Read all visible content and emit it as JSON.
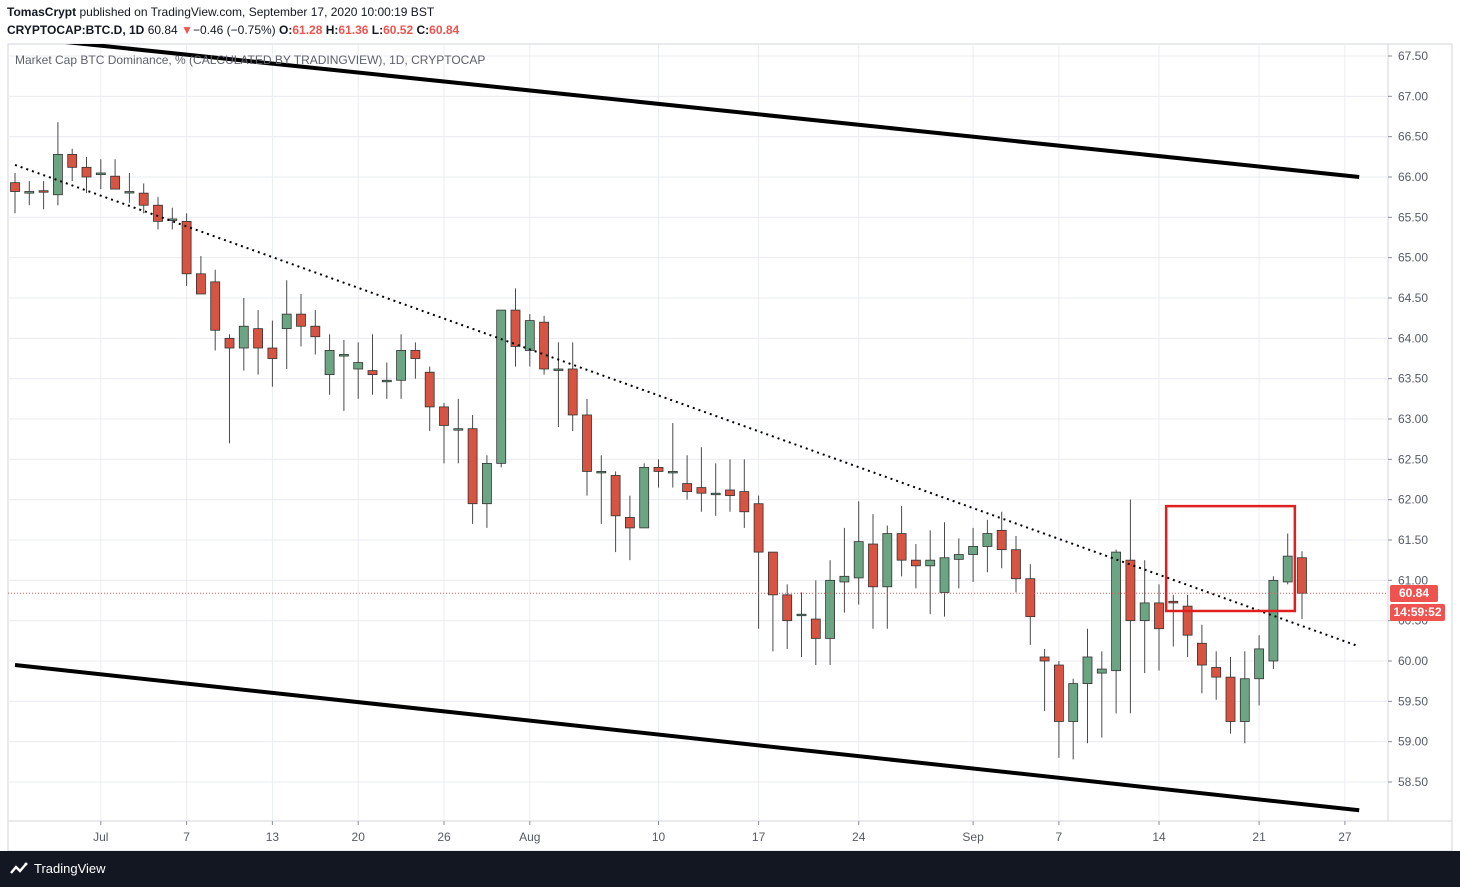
{
  "header": {
    "author": "TomasCrypt",
    "published_text": "published on TradingView.com, September 17, 2020 10:00:19 BST",
    "symbol": "CRYPTOCAP:BTC.D, 1D",
    "last": "60.84",
    "change_arrow": "▼",
    "change": "−0.46 (−0.75%)",
    "o_label": "O:",
    "o_value": "61.28",
    "h_label": "H:",
    "h_value": "61.36",
    "l_label": "L:",
    "l_value": "60.52",
    "c_label": "C:",
    "c_value": "60.84"
  },
  "subtitle": "Market Cap BTC Dominance, % (CALCULATED BY TRADINGVIEW), 1D, CRYPTOCAP",
  "badges": {
    "price": "60.84",
    "countdown": "14:59:52"
  },
  "footer": {
    "brand": "TradingView",
    "logo_icon": "tradingview-logo-icon"
  },
  "colors": {
    "up": "#6ba583",
    "down": "#d75442",
    "wick": "#4a4a4a",
    "grid": "#e9ecf2",
    "accent_red": "#ef5350",
    "box": "#e01f1f",
    "trendline": "#000000"
  },
  "chart_data": {
    "type": "candlestick",
    "y_ticks": [
      "58.50",
      "59.00",
      "59.50",
      "60.00",
      "60.50",
      "61.00",
      "61.50",
      "62.00",
      "62.50",
      "63.00",
      "63.50",
      "64.00",
      "64.50",
      "65.00",
      "65.50",
      "66.00",
      "66.50",
      "67.00",
      "67.50"
    ],
    "ylim": [
      58.1,
      67.7
    ],
    "x_ticks": [
      {
        "i": 6,
        "label": "Jul"
      },
      {
        "i": 12,
        "label": "7"
      },
      {
        "i": 18,
        "label": "13"
      },
      {
        "i": 24,
        "label": "20"
      },
      {
        "i": 30,
        "label": "26"
      },
      {
        "i": 36,
        "label": "Aug"
      },
      {
        "i": 45,
        "label": "10"
      },
      {
        "i": 52,
        "label": "17"
      },
      {
        "i": 59,
        "label": "24"
      },
      {
        "i": 67,
        "label": "Sep"
      },
      {
        "i": 73,
        "label": "7"
      },
      {
        "i": 80,
        "label": "14"
      },
      {
        "i": 87,
        "label": "21"
      },
      {
        "i": 93,
        "label": "27"
      }
    ],
    "candles": [
      {
        "o": 65.93,
        "h": 66.05,
        "l": 65.55,
        "c": 65.82
      },
      {
        "o": 65.8,
        "h": 65.95,
        "l": 65.65,
        "c": 65.82
      },
      {
        "o": 65.83,
        "h": 65.95,
        "l": 65.6,
        "c": 65.82
      },
      {
        "o": 65.78,
        "h": 66.68,
        "l": 65.65,
        "c": 66.28
      },
      {
        "o": 66.28,
        "h": 66.35,
        "l": 65.95,
        "c": 66.12
      },
      {
        "o": 66.12,
        "h": 66.25,
        "l": 65.8,
        "c": 66.0
      },
      {
        "o": 66.03,
        "h": 66.22,
        "l": 65.85,
        "c": 66.05
      },
      {
        "o": 66.01,
        "h": 66.22,
        "l": 65.85,
        "c": 65.85
      },
      {
        "o": 65.82,
        "h": 66.05,
        "l": 65.68,
        "c": 65.82
      },
      {
        "o": 65.8,
        "h": 65.92,
        "l": 65.55,
        "c": 65.65
      },
      {
        "o": 65.65,
        "h": 65.75,
        "l": 65.35,
        "c": 65.45
      },
      {
        "o": 65.48,
        "h": 65.62,
        "l": 65.35,
        "c": 65.48
      },
      {
        "o": 65.45,
        "h": 65.55,
        "l": 64.65,
        "c": 64.8
      },
      {
        "o": 64.8,
        "h": 65.02,
        "l": 64.55,
        "c": 64.55
      },
      {
        "o": 64.7,
        "h": 64.85,
        "l": 63.85,
        "c": 64.1
      },
      {
        "o": 64.0,
        "h": 64.05,
        "l": 62.7,
        "c": 63.88
      },
      {
        "o": 63.88,
        "h": 64.5,
        "l": 63.6,
        "c": 64.15
      },
      {
        "o": 64.12,
        "h": 64.35,
        "l": 63.55,
        "c": 63.88
      },
      {
        "o": 63.88,
        "h": 64.22,
        "l": 63.4,
        "c": 63.75
      },
      {
        "o": 64.12,
        "h": 64.72,
        "l": 63.62,
        "c": 64.3
      },
      {
        "o": 64.3,
        "h": 64.55,
        "l": 63.9,
        "c": 64.15
      },
      {
        "o": 64.15,
        "h": 64.35,
        "l": 63.8,
        "c": 64.02
      },
      {
        "o": 63.55,
        "h": 64.05,
        "l": 63.3,
        "c": 63.85
      },
      {
        "o": 63.78,
        "h": 63.98,
        "l": 63.1,
        "c": 63.8
      },
      {
        "o": 63.62,
        "h": 63.95,
        "l": 63.25,
        "c": 63.7
      },
      {
        "o": 63.6,
        "h": 64.05,
        "l": 63.3,
        "c": 63.55
      },
      {
        "o": 63.48,
        "h": 63.7,
        "l": 63.25,
        "c": 63.48
      },
      {
        "o": 63.48,
        "h": 64.05,
        "l": 63.25,
        "c": 63.85
      },
      {
        "o": 63.85,
        "h": 63.95,
        "l": 63.5,
        "c": 63.75
      },
      {
        "o": 63.58,
        "h": 63.65,
        "l": 62.85,
        "c": 63.15
      },
      {
        "o": 63.15,
        "h": 63.2,
        "l": 62.45,
        "c": 62.92
      },
      {
        "o": 62.88,
        "h": 63.25,
        "l": 62.45,
        "c": 62.88
      },
      {
        "o": 62.88,
        "h": 63.05,
        "l": 61.7,
        "c": 61.95
      },
      {
        "o": 61.95,
        "h": 62.55,
        "l": 61.65,
        "c": 62.45
      },
      {
        "o": 62.45,
        "h": 64.35,
        "l": 62.4,
        "c": 64.35
      },
      {
        "o": 64.35,
        "h": 64.62,
        "l": 63.65,
        "c": 63.9
      },
      {
        "o": 63.85,
        "h": 64.3,
        "l": 63.65,
        "c": 64.22
      },
      {
        "o": 64.2,
        "h": 64.28,
        "l": 63.55,
        "c": 63.62
      },
      {
        "o": 63.62,
        "h": 63.95,
        "l": 62.9,
        "c": 63.62
      },
      {
        "o": 63.62,
        "h": 63.95,
        "l": 62.85,
        "c": 63.05
      },
      {
        "o": 63.05,
        "h": 63.25,
        "l": 62.05,
        "c": 62.35
      },
      {
        "o": 62.35,
        "h": 62.55,
        "l": 61.7,
        "c": 62.35
      },
      {
        "o": 62.3,
        "h": 62.35,
        "l": 61.35,
        "c": 61.8
      },
      {
        "o": 61.78,
        "h": 62.05,
        "l": 61.25,
        "c": 61.65
      },
      {
        "o": 61.65,
        "h": 62.45,
        "l": 61.65,
        "c": 62.4
      },
      {
        "o": 62.4,
        "h": 62.5,
        "l": 62.15,
        "c": 62.35
      },
      {
        "o": 62.35,
        "h": 62.95,
        "l": 62.15,
        "c": 62.35
      },
      {
        "o": 62.2,
        "h": 62.55,
        "l": 62.0,
        "c": 62.1
      },
      {
        "o": 62.15,
        "h": 62.65,
        "l": 61.85,
        "c": 62.08
      },
      {
        "o": 62.08,
        "h": 62.45,
        "l": 61.8,
        "c": 62.08
      },
      {
        "o": 62.12,
        "h": 62.5,
        "l": 61.85,
        "c": 62.05
      },
      {
        "o": 62.1,
        "h": 62.5,
        "l": 61.65,
        "c": 61.85
      },
      {
        "o": 61.95,
        "h": 62.05,
        "l": 60.4,
        "c": 61.35
      },
      {
        "o": 61.35,
        "h": 61.35,
        "l": 60.12,
        "c": 60.82
      },
      {
        "o": 60.82,
        "h": 60.95,
        "l": 60.15,
        "c": 60.5
      },
      {
        "o": 60.58,
        "h": 60.85,
        "l": 60.05,
        "c": 60.58
      },
      {
        "o": 60.52,
        "h": 61.0,
        "l": 59.95,
        "c": 60.28
      },
      {
        "o": 60.28,
        "h": 61.25,
        "l": 59.95,
        "c": 61.0
      },
      {
        "o": 60.98,
        "h": 61.65,
        "l": 60.6,
        "c": 61.05
      },
      {
        "o": 61.03,
        "h": 61.98,
        "l": 60.7,
        "c": 61.48
      },
      {
        "o": 61.45,
        "h": 61.82,
        "l": 60.4,
        "c": 60.92
      },
      {
        "o": 60.92,
        "h": 61.68,
        "l": 60.4,
        "c": 61.58
      },
      {
        "o": 61.58,
        "h": 61.92,
        "l": 61.05,
        "c": 61.25
      },
      {
        "o": 61.25,
        "h": 61.45,
        "l": 60.9,
        "c": 61.18
      },
      {
        "o": 61.18,
        "h": 61.62,
        "l": 60.58,
        "c": 61.25
      },
      {
        "o": 60.85,
        "h": 61.72,
        "l": 60.55,
        "c": 61.28
      },
      {
        "o": 61.26,
        "h": 61.52,
        "l": 60.9,
        "c": 61.32
      },
      {
        "o": 61.32,
        "h": 61.65,
        "l": 60.98,
        "c": 61.42
      },
      {
        "o": 61.42,
        "h": 61.75,
        "l": 61.1,
        "c": 61.58
      },
      {
        "o": 61.62,
        "h": 61.85,
        "l": 61.15,
        "c": 61.38
      },
      {
        "o": 61.38,
        "h": 61.55,
        "l": 60.85,
        "c": 61.02
      },
      {
        "o": 61.02,
        "h": 61.2,
        "l": 60.2,
        "c": 60.55
      },
      {
        "o": 60.05,
        "h": 60.15,
        "l": 59.38,
        "c": 60.0
      },
      {
        "o": 59.95,
        "h": 60.0,
        "l": 58.8,
        "c": 59.25
      },
      {
        "o": 59.25,
        "h": 59.78,
        "l": 58.78,
        "c": 59.72
      },
      {
        "o": 59.72,
        "h": 60.4,
        "l": 58.98,
        "c": 60.05
      },
      {
        "o": 59.85,
        "h": 60.12,
        "l": 59.05,
        "c": 59.9
      },
      {
        "o": 59.88,
        "h": 61.38,
        "l": 59.35,
        "c": 61.35
      },
      {
        "o": 61.25,
        "h": 62.0,
        "l": 59.35,
        "c": 60.5
      },
      {
        "o": 60.5,
        "h": 61.25,
        "l": 59.85,
        "c": 60.72
      },
      {
        "o": 60.72,
        "h": 60.95,
        "l": 59.88,
        "c": 60.4
      },
      {
        "o": 60.74,
        "h": 60.82,
        "l": 60.18,
        "c": 60.72
      },
      {
        "o": 60.68,
        "h": 60.82,
        "l": 60.05,
        "c": 60.32
      },
      {
        "o": 60.22,
        "h": 60.45,
        "l": 59.6,
        "c": 59.95
      },
      {
        "o": 59.92,
        "h": 60.12,
        "l": 59.52,
        "c": 59.8
      },
      {
        "o": 59.8,
        "h": 60.05,
        "l": 59.1,
        "c": 59.25
      },
      {
        "o": 59.25,
        "h": 60.12,
        "l": 58.98,
        "c": 59.78
      },
      {
        "o": 59.78,
        "h": 60.32,
        "l": 59.45,
        "c": 60.15
      },
      {
        "o": 60.0,
        "h": 61.05,
        "l": 59.9,
        "c": 61.0
      },
      {
        "o": 60.98,
        "h": 61.58,
        "l": 60.95,
        "c": 61.3
      },
      {
        "o": 61.28,
        "h": 61.36,
        "l": 60.52,
        "c": 60.84
      }
    ],
    "trendlines": [
      {
        "style": "solid",
        "from": {
          "i": 1,
          "y": 67.72
        },
        "to": {
          "i": 94,
          "y": 66.0
        }
      },
      {
        "style": "solid",
        "from": {
          "i": 0,
          "y": 59.95
        },
        "to": {
          "i": 94,
          "y": 58.15
        }
      },
      {
        "style": "dotted",
        "from": {
          "i": 0,
          "y": 66.15
        },
        "to": {
          "i": 94,
          "y": 60.18
        }
      }
    ],
    "last_price_line": 60.84,
    "highlight_box": {
      "i_from": 80.5,
      "i_to": 89.5,
      "y_top": 61.92,
      "y_bottom": 60.62
    }
  }
}
